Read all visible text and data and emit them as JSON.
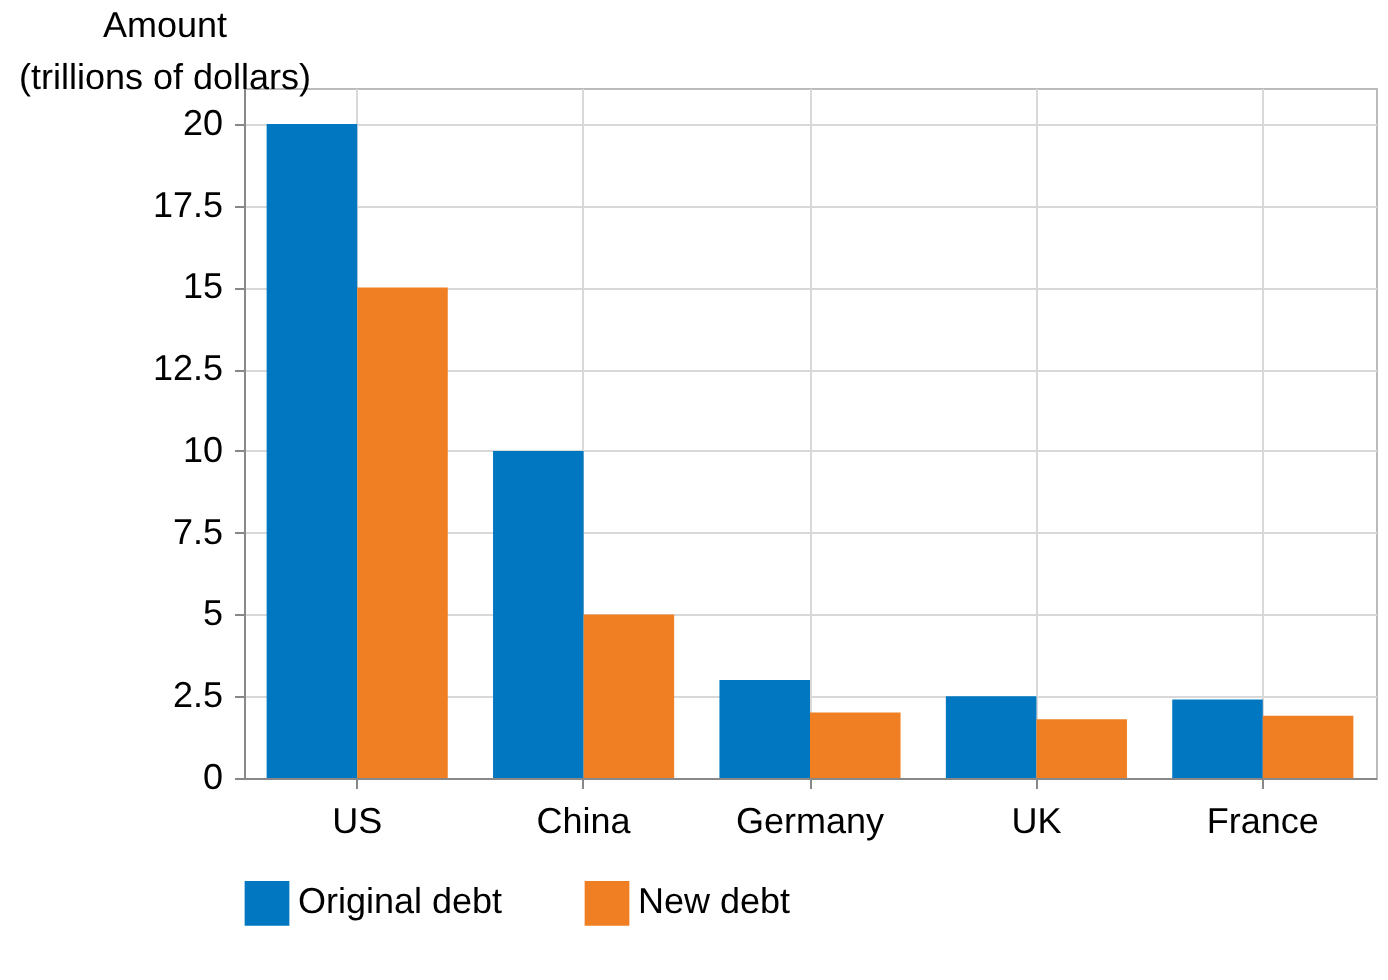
{
  "chart_data": {
    "type": "bar",
    "ylabel": "Amount\n(trillions of dollars)",
    "categories": [
      "US",
      "China",
      "Germany",
      "UK",
      "France"
    ],
    "series": [
      {
        "name": "Original debt",
        "color": "#0077c0",
        "values": [
          20,
          10,
          3,
          2.5,
          2.4
        ]
      },
      {
        "name": "New debt",
        "color": "#f07f23",
        "values": [
          15,
          5,
          2,
          1.8,
          1.9
        ]
      }
    ],
    "ylim": [
      0,
      21.1
    ],
    "yticks": [
      0,
      2.5,
      5,
      7.5,
      10,
      12.5,
      15,
      17.5,
      20
    ],
    "grid": true,
    "legend": "bottom"
  }
}
